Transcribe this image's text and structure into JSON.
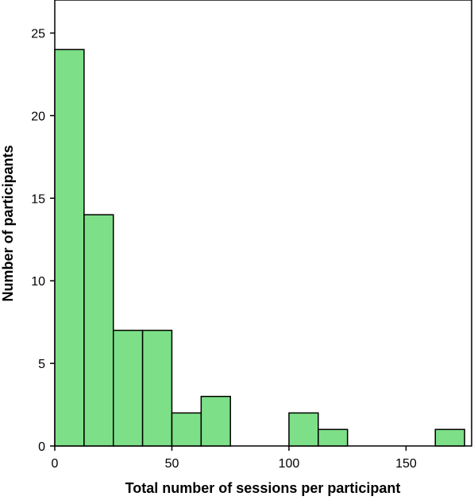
{
  "chart_data": {
    "type": "bar",
    "xlabel": "Total number of sessions per participant",
    "ylabel": "Number of participants",
    "xlim": [
      0,
      178
    ],
    "ylim": [
      0,
      27
    ],
    "xticks": [
      0,
      50,
      100,
      150
    ],
    "yticks": [
      0,
      5,
      10,
      15,
      20,
      25
    ],
    "bin_width": 12.5,
    "bins": [
      {
        "start": 0,
        "end": 12.5,
        "value": 24
      },
      {
        "start": 12.5,
        "end": 25,
        "value": 14
      },
      {
        "start": 25,
        "end": 37.5,
        "value": 7
      },
      {
        "start": 37.5,
        "end": 50,
        "value": 7
      },
      {
        "start": 50,
        "end": 62.5,
        "value": 2
      },
      {
        "start": 62.5,
        "end": 75,
        "value": 3
      },
      {
        "start": 100,
        "end": 112.5,
        "value": 2
      },
      {
        "start": 112.5,
        "end": 125,
        "value": 1
      },
      {
        "start": 162.5,
        "end": 175,
        "value": 1
      }
    ],
    "bar_color": "#7ddf87",
    "bar_stroke": "#000000",
    "grid": false,
    "legend": "none"
  }
}
